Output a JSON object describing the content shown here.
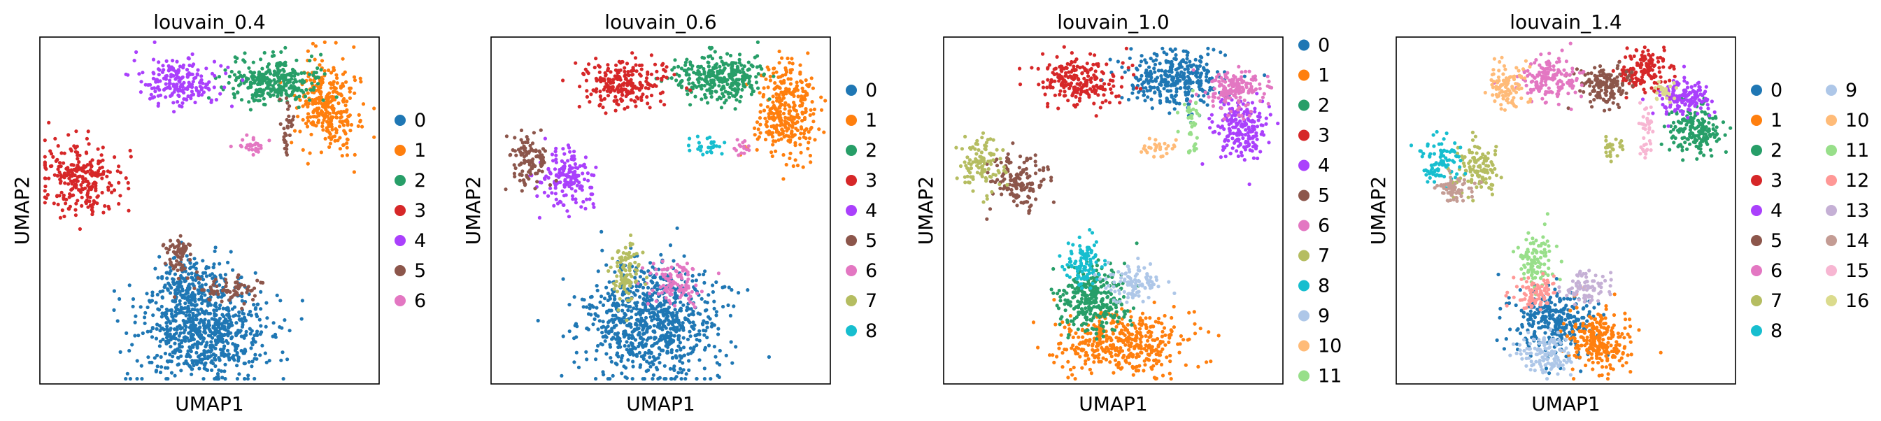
{
  "figure": {
    "panel_titles": [
      "louvain_0.4",
      "louvain_0.6",
      "louvain_1.0",
      "louvain_1.4"
    ],
    "xlabel": "UMAP1",
    "ylabel": "UMAP2"
  },
  "palette": [
    "#1f77b4",
    "#ff7f0e",
    "#279e68",
    "#d62728",
    "#aa40fc",
    "#8c564b",
    "#e377c2",
    "#b5bd61",
    "#17becf",
    "#aec7e8",
    "#ffbb78",
    "#98df8a",
    "#ff9896",
    "#c5b0d5",
    "#c49c94",
    "#f7b6d2",
    "#dbdb8d"
  ],
  "chart_data": [
    {
      "type": "scatter",
      "title": "louvain_0.4",
      "xlabel": "UMAP1",
      "ylabel": "UMAP2",
      "xticks": "none",
      "yticks": "none",
      "legend_placement": "right",
      "legend_columns": 1,
      "xlim": [
        0,
        100
      ],
      "ylim": [
        0,
        100
      ],
      "series": [
        {
          "name": "0",
          "color": "#1f77b4",
          "clusters": [
            {
              "x": 48,
              "y": 15,
              "sx": 10,
              "sy": 7,
              "n": 700
            },
            {
              "x": 44,
              "y": 28,
              "sx": 5,
              "sy": 5,
              "n": 180
            }
          ]
        },
        {
          "name": "1",
          "color": "#ff7f0e",
          "clusters": [
            {
              "x": 85,
              "y": 80,
              "sx": 4.5,
              "sy": 6.5,
              "n": 300
            }
          ]
        },
        {
          "name": "2",
          "color": "#279e68",
          "clusters": [
            {
              "x": 69,
              "y": 87,
              "sx": 7,
              "sy": 3.5,
              "n": 300
            }
          ]
        },
        {
          "name": "3",
          "color": "#d62728",
          "clusters": [
            {
              "x": 12,
              "y": 59,
              "sx": 6,
              "sy": 5,
              "n": 260
            }
          ]
        },
        {
          "name": "4",
          "color": "#aa40fc",
          "clusters": [
            {
              "x": 41,
              "y": 87,
              "sx": 6,
              "sy": 3.5,
              "n": 200
            }
          ]
        },
        {
          "name": "5",
          "color": "#8c564b",
          "clusters": [
            {
              "x": 41,
              "y": 37,
              "sx": 2,
              "sy": 3,
              "n": 70
            },
            {
              "x": 57,
              "y": 27,
              "sx": 5,
              "sy": 2,
              "n": 70
            },
            {
              "x": 73,
              "y": 76,
              "sx": 1.2,
              "sy": 3,
              "n": 25
            },
            {
              "x": 73,
              "y": 68,
              "sx": 1,
              "sy": 1,
              "n": 8
            }
          ]
        },
        {
          "name": "6",
          "color": "#e377c2",
          "clusters": [
            {
              "x": 63,
              "y": 68,
              "sx": 2.2,
              "sy": 1.5,
              "n": 30
            }
          ]
        }
      ]
    },
    {
      "type": "scatter",
      "title": "louvain_0.6",
      "xlabel": "UMAP1",
      "ylabel": "UMAP2",
      "xticks": "none",
      "yticks": "none",
      "legend_placement": "right",
      "legend_columns": 1,
      "xlim": [
        0,
        100
      ],
      "ylim": [
        0,
        100
      ],
      "series": [
        {
          "name": "0",
          "color": "#1f77b4",
          "clusters": [
            {
              "x": 48,
              "y": 18,
              "sx": 10,
              "sy": 8,
              "n": 800
            }
          ]
        },
        {
          "name": "1",
          "color": "#ff7f0e",
          "clusters": [
            {
              "x": 87,
              "y": 78,
              "sx": 4.5,
              "sy": 7,
              "n": 320
            }
          ]
        },
        {
          "name": "2",
          "color": "#279e68",
          "clusters": [
            {
              "x": 67,
              "y": 88,
              "sx": 7,
              "sy": 3.5,
              "n": 300
            }
          ]
        },
        {
          "name": "3",
          "color": "#d62728",
          "clusters": [
            {
              "x": 40,
              "y": 87,
              "sx": 7,
              "sy": 3.5,
              "n": 230
            }
          ]
        },
        {
          "name": "4",
          "color": "#aa40fc",
          "clusters": [
            {
              "x": 22,
              "y": 59,
              "sx": 4,
              "sy": 4,
              "n": 160
            }
          ]
        },
        {
          "name": "5",
          "color": "#8c564b",
          "clusters": [
            {
              "x": 11,
              "y": 64,
              "sx": 3,
              "sy": 4,
              "n": 110
            }
          ]
        },
        {
          "name": "6",
          "color": "#e377c2",
          "clusters": [
            {
              "x": 55,
              "y": 29,
              "sx": 4,
              "sy": 3,
              "n": 100
            },
            {
              "x": 73,
              "y": 68,
              "sx": 1.5,
              "sy": 1.5,
              "n": 15
            }
          ]
        },
        {
          "name": "7",
          "color": "#b5bd61",
          "clusters": [
            {
              "x": 40,
              "y": 33,
              "sx": 2,
              "sy": 5,
              "n": 100
            }
          ]
        },
        {
          "name": "8",
          "color": "#17becf",
          "clusters": [
            {
              "x": 63,
              "y": 68,
              "sx": 2.5,
              "sy": 1.5,
              "n": 30
            }
          ]
        }
      ]
    },
    {
      "type": "scatter",
      "title": "louvain_1.0",
      "xlabel": "UMAP1",
      "ylabel": "UMAP2",
      "xticks": "none",
      "yticks": "none",
      "legend_placement": "right",
      "legend_columns": 1,
      "xlim": [
        0,
        100
      ],
      "ylim": [
        0,
        100
      ],
      "series": [
        {
          "name": "0",
          "color": "#1f77b4",
          "clusters": [
            {
              "x": 68,
              "y": 88,
              "sx": 7,
              "sy": 4,
              "n": 340
            }
          ]
        },
        {
          "name": "1",
          "color": "#ff7f0e",
          "clusters": [
            {
              "x": 53,
              "y": 12,
              "sx": 9,
              "sy": 4.5,
              "n": 420
            }
          ]
        },
        {
          "name": "2",
          "color": "#279e68",
          "clusters": [
            {
              "x": 44,
              "y": 24,
              "sx": 5,
              "sy": 5,
              "n": 300
            }
          ]
        },
        {
          "name": "3",
          "color": "#d62728",
          "clusters": [
            {
              "x": 40,
              "y": 87,
              "sx": 6,
              "sy": 3.5,
              "n": 220
            }
          ]
        },
        {
          "name": "4",
          "color": "#aa40fc",
          "clusters": [
            {
              "x": 88,
              "y": 74,
              "sx": 4,
              "sy": 4.5,
              "n": 200
            }
          ]
        },
        {
          "name": "5",
          "color": "#8c564b",
          "clusters": [
            {
              "x": 22,
              "y": 58,
              "sx": 4,
              "sy": 4,
              "n": 150
            }
          ]
        },
        {
          "name": "6",
          "color": "#e377c2",
          "clusters": [
            {
              "x": 86,
              "y": 85,
              "sx": 4,
              "sy": 3,
              "n": 160
            }
          ]
        },
        {
          "name": "7",
          "color": "#b5bd61",
          "clusters": [
            {
              "x": 11,
              "y": 64,
              "sx": 3,
              "sy": 4,
              "n": 110
            }
          ]
        },
        {
          "name": "8",
          "color": "#17becf",
          "clusters": [
            {
              "x": 41,
              "y": 35,
              "sx": 2.5,
              "sy": 4,
              "n": 100
            }
          ]
        },
        {
          "name": "9",
          "color": "#aec7e8",
          "clusters": [
            {
              "x": 56,
              "y": 29,
              "sx": 4,
              "sy": 3,
              "n": 100
            }
          ]
        },
        {
          "name": "10",
          "color": "#ffbb78",
          "clusters": [
            {
              "x": 63,
              "y": 68,
              "sx": 2.5,
              "sy": 1.5,
              "n": 30
            }
          ]
        },
        {
          "name": "11",
          "color": "#98df8a",
          "clusters": [
            {
              "x": 73,
              "y": 76,
              "sx": 1.5,
              "sy": 3,
              "n": 30
            },
            {
              "x": 73,
              "y": 68,
              "sx": 1,
              "sy": 1,
              "n": 10
            }
          ]
        }
      ]
    },
    {
      "type": "scatter",
      "title": "louvain_1.4",
      "xlabel": "UMAP1",
      "ylabel": "UMAP2",
      "xticks": "none",
      "yticks": "none",
      "legend_placement": "right",
      "legend_columns": 2,
      "xlim": [
        0,
        100
      ],
      "ylim": [
        0,
        100
      ],
      "series": [
        {
          "name": "0",
          "color": "#1f77b4",
          "clusters": [
            {
              "x": 47,
              "y": 18,
              "sx": 6,
              "sy": 5,
              "n": 300
            }
          ]
        },
        {
          "name": "1",
          "color": "#ff7f0e",
          "clusters": [
            {
              "x": 60,
              "y": 13,
              "sx": 5,
              "sy": 4.5,
              "n": 240
            }
          ]
        },
        {
          "name": "2",
          "color": "#279e68",
          "clusters": [
            {
              "x": 88,
              "y": 73,
              "sx": 4,
              "sy": 4,
              "n": 180
            }
          ]
        },
        {
          "name": "3",
          "color": "#d62728",
          "clusters": [
            {
              "x": 73,
              "y": 90,
              "sx": 4,
              "sy": 3,
              "n": 140
            }
          ]
        },
        {
          "name": "4",
          "color": "#aa40fc",
          "clusters": [
            {
              "x": 85,
              "y": 83,
              "sx": 4,
              "sy": 2.5,
              "n": 150
            }
          ]
        },
        {
          "name": "5",
          "color": "#8c564b",
          "clusters": [
            {
              "x": 62,
              "y": 86,
              "sx": 4,
              "sy": 3,
              "n": 150
            }
          ]
        },
        {
          "name": "6",
          "color": "#e377c2",
          "clusters": [
            {
              "x": 45,
              "y": 88,
              "sx": 4.5,
              "sy": 3,
              "n": 160
            }
          ]
        },
        {
          "name": "7",
          "color": "#b5bd61",
          "clusters": [
            {
              "x": 24,
              "y": 62,
              "sx": 3.5,
              "sy": 3.5,
              "n": 110
            },
            {
              "x": 63,
              "y": 68,
              "sx": 2,
              "sy": 1.5,
              "n": 25
            }
          ]
        },
        {
          "name": "8",
          "color": "#17becf",
          "clusters": [
            {
              "x": 13,
              "y": 64,
              "sx": 3,
              "sy": 3.5,
              "n": 90
            }
          ]
        },
        {
          "name": "9",
          "color": "#aec7e8",
          "clusters": [
            {
              "x": 44,
              "y": 9,
              "sx": 4,
              "sy": 3,
              "n": 130
            }
          ]
        },
        {
          "name": "10",
          "color": "#ffbb78",
          "clusters": [
            {
              "x": 33,
              "y": 86,
              "sx": 3,
              "sy": 3,
              "n": 100
            }
          ]
        },
        {
          "name": "11",
          "color": "#98df8a",
          "clusters": [
            {
              "x": 41,
              "y": 36,
              "sx": 2.5,
              "sy": 4,
              "n": 100
            }
          ]
        },
        {
          "name": "12",
          "color": "#ff9896",
          "clusters": [
            {
              "x": 41,
              "y": 26,
              "sx": 3,
              "sy": 2.5,
              "n": 90
            }
          ]
        },
        {
          "name": "13",
          "color": "#c5b0d5",
          "clusters": [
            {
              "x": 56,
              "y": 28,
              "sx": 3,
              "sy": 2.5,
              "n": 80
            }
          ]
        },
        {
          "name": "14",
          "color": "#c49c94",
          "clusters": [
            {
              "x": 17,
              "y": 56,
              "sx": 3,
              "sy": 2,
              "n": 60
            }
          ]
        },
        {
          "name": "15",
          "color": "#f7b6d2",
          "clusters": [
            {
              "x": 74,
              "y": 74,
              "sx": 1.5,
              "sy": 3,
              "n": 30
            },
            {
              "x": 73,
              "y": 67,
              "sx": 1,
              "sy": 1,
              "n": 8
            }
          ]
        },
        {
          "name": "16",
          "color": "#dbdb8d",
          "clusters": [
            {
              "x": 79,
              "y": 84,
              "sx": 1.5,
              "sy": 1.5,
              "n": 25
            }
          ]
        }
      ]
    }
  ]
}
